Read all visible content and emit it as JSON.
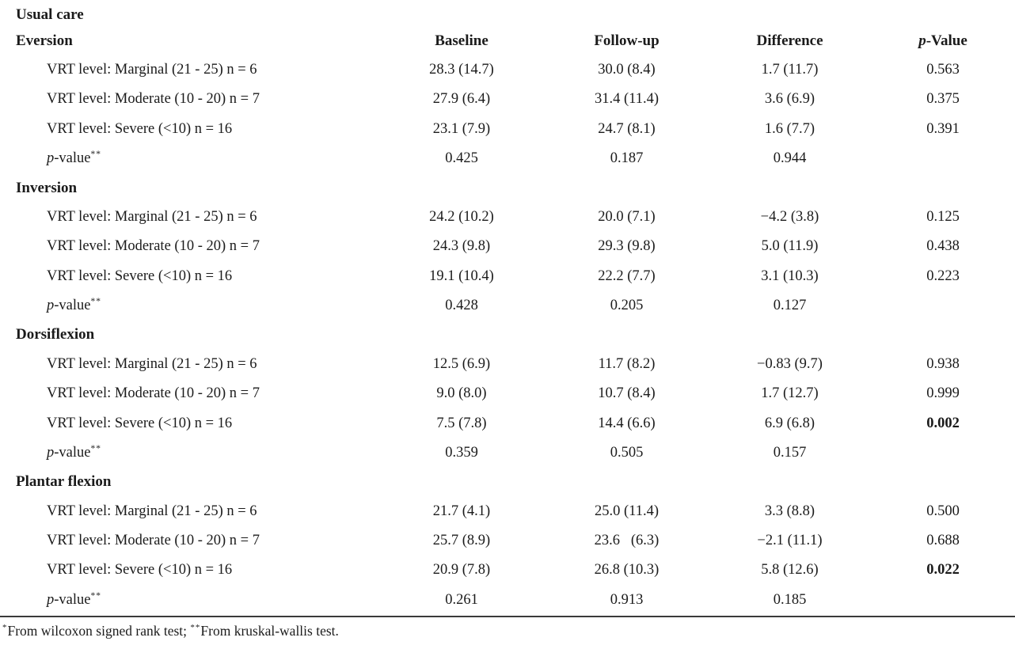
{
  "title": "Usual care",
  "columns": [
    {
      "text": ""
    },
    {
      "text": "Baseline"
    },
    {
      "text": "Follow-up"
    },
    {
      "text": "Difference"
    },
    {
      "italic": "p",
      "text": "-Value"
    }
  ],
  "pvalue_row_label": {
    "italic": "p",
    "text": "-value",
    "sup": "**"
  },
  "sections": [
    {
      "name": "Eversion",
      "rows": [
        {
          "label": "VRT level: Marginal (21 - 25) n = 6",
          "baseline": "28.3 (14.7)",
          "followup": "30.0 (8.4)",
          "difference": "1.7 (11.7)",
          "pvalue": "0.563",
          "pvalue_bold": false
        },
        {
          "label": "VRT level: Moderate (10 - 20) n = 7",
          "baseline": "27.9 (6.4)",
          "followup": "31.4 (11.4)",
          "difference": "3.6 (6.9)",
          "pvalue": "0.375",
          "pvalue_bold": false
        },
        {
          "label": "VRT level: Severe (<10) n = 16",
          "baseline": "23.1 (7.9)",
          "followup": "24.7 (8.1)",
          "difference": "1.6 (7.7)",
          "pvalue": "0.391",
          "pvalue_bold": false
        }
      ],
      "summary": {
        "baseline": "0.425",
        "followup": "0.187",
        "difference": "0.944"
      }
    },
    {
      "name": "Inversion",
      "rows": [
        {
          "label": "VRT level: Marginal (21 - 25) n = 6",
          "baseline": "24.2 (10.2)",
          "followup": "20.0 (7.1)",
          "difference": "−4.2 (3.8)",
          "pvalue": "0.125",
          "pvalue_bold": false
        },
        {
          "label": "VRT level: Moderate (10 - 20) n = 7",
          "baseline": "24.3 (9.8)",
          "followup": "29.3 (9.8)",
          "difference": "5.0 (11.9)",
          "pvalue": "0.438",
          "pvalue_bold": false
        },
        {
          "label": "VRT level: Severe (<10) n = 16",
          "baseline": "19.1 (10.4)",
          "followup": "22.2 (7.7)",
          "difference": "3.1 (10.3)",
          "pvalue": "0.223",
          "pvalue_bold": false
        }
      ],
      "summary": {
        "baseline": "0.428",
        "followup": "0.205",
        "difference": "0.127"
      }
    },
    {
      "name": "Dorsiflexion",
      "rows": [
        {
          "label": "VRT level: Marginal (21 - 25) n = 6",
          "baseline": "12.5 (6.9)",
          "followup": "11.7 (8.2)",
          "difference": "−0.83 (9.7)",
          "pvalue": "0.938",
          "pvalue_bold": false
        },
        {
          "label": "VRT level: Moderate (10 - 20) n = 7",
          "baseline": "9.0 (8.0)",
          "followup": "10.7 (8.4)",
          "difference": "1.7 (12.7)",
          "pvalue": "0.999",
          "pvalue_bold": false
        },
        {
          "label": "VRT level: Severe (<10) n = 16",
          "baseline": "7.5 (7.8)",
          "followup": "14.4 (6.6)",
          "difference": "6.9 (6.8)",
          "pvalue": "0.002",
          "pvalue_bold": true
        }
      ],
      "summary": {
        "baseline": "0.359",
        "followup": "0.505",
        "difference": "0.157"
      }
    },
    {
      "name": "Plantar flexion",
      "rows": [
        {
          "label": "VRT level: Marginal (21 - 25) n = 6",
          "baseline": "21.7 (4.1)",
          "followup": "25.0 (11.4)",
          "difference": "3.3 (8.8)",
          "pvalue": "0.500",
          "pvalue_bold": false
        },
        {
          "label": "VRT level: Moderate (10 - 20) n = 7",
          "baseline": "25.7 (8.9)",
          "followup": "23.6   (6.3)",
          "difference": "−2.1 (11.1)",
          "pvalue": "0.688",
          "pvalue_bold": false
        },
        {
          "label": "VRT level: Severe (<10) n = 16",
          "baseline": "20.9 (7.8)",
          "followup": "26.8 (10.3)",
          "difference": "5.8 (12.6)",
          "pvalue": "0.022",
          "pvalue_bold": true
        }
      ],
      "summary": {
        "baseline": "0.261",
        "followup": "0.913",
        "difference": "0.185"
      }
    }
  ],
  "footnote": {
    "sup1": "*",
    "text1": "From wilcoxon signed rank test; ",
    "sup2": "**",
    "text2": "From kruskal-wallis test."
  }
}
